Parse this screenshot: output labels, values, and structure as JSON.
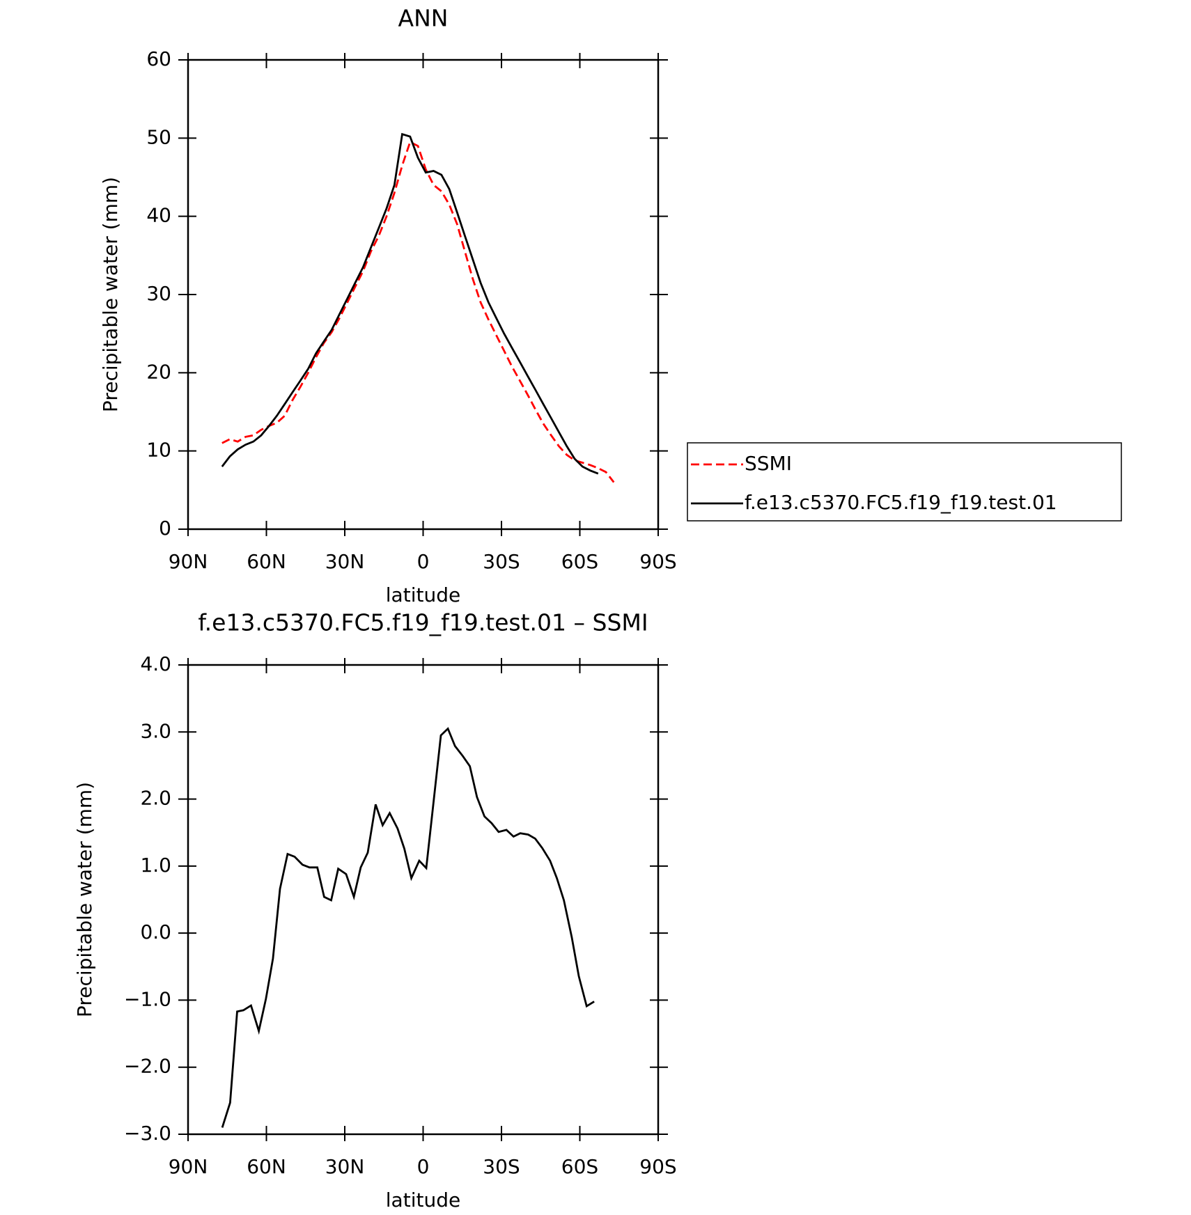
{
  "chart_data": [
    {
      "type": "line",
      "title": "ANN",
      "xlabel": "latitude",
      "ylabel": "Precipitable water (mm)",
      "x": [
        77,
        74,
        71,
        68,
        65,
        62,
        59,
        56,
        53,
        50,
        47,
        44,
        41,
        38,
        35,
        32,
        29,
        26,
        23,
        20,
        17,
        14,
        11,
        8,
        5,
        2,
        -1,
        -4,
        -7,
        -10,
        -13,
        -16,
        -19,
        -22,
        -25,
        -28,
        -31,
        -34,
        -37,
        -40,
        -43,
        -46,
        -49,
        -52,
        -55,
        -58,
        -61,
        -64,
        -67,
        -70,
        -73
      ],
      "series": [
        {
          "name": "SSMI",
          "color": "#ff0000",
          "style": "dashed",
          "values": [
            11.0,
            11.5,
            11.2,
            11.8,
            12.0,
            12.7,
            13.2,
            13.6,
            14.5,
            16.5,
            18.2,
            20.0,
            22.0,
            23.8,
            25.2,
            27.0,
            29.0,
            31.0,
            33.0,
            35.5,
            37.5,
            40.0,
            43.0,
            46.5,
            49.5,
            49.0,
            46.0,
            44.0,
            43.2,
            41.5,
            39.0,
            35.5,
            32.0,
            29.0,
            26.8,
            24.8,
            22.8,
            20.8,
            19.0,
            17.2,
            15.3,
            13.5,
            12.0,
            10.6,
            9.5,
            8.8,
            8.5,
            8.2,
            7.8,
            7.3,
            6.0
          ]
        },
        {
          "name": "f.e13.c5370.FC5.f19_f19.test.01",
          "color": "#000000",
          "style": "solid",
          "values": [
            8.0,
            9.3,
            10.2,
            10.8,
            11.2,
            12.0,
            13.2,
            14.5,
            16.0,
            17.5,
            19.0,
            20.5,
            22.5,
            24.0,
            25.5,
            27.5,
            29.5,
            31.5,
            33.5,
            36.0,
            38.5,
            41.0,
            44.0,
            50.5,
            50.2,
            47.5,
            45.6,
            45.8,
            45.3,
            43.5,
            40.5,
            37.5,
            34.5,
            31.5,
            29.0,
            27.0,
            25.0,
            23.2,
            21.4,
            19.6,
            17.8,
            16.0,
            14.2,
            12.4,
            10.6,
            9.0,
            8.0,
            7.5,
            7.1,
            null,
            null
          ]
        }
      ],
      "xlim": [
        90,
        -90
      ],
      "ylim": [
        0,
        60
      ],
      "xticks": [
        {
          "value": 90,
          "label": "90N"
        },
        {
          "value": 60,
          "label": "60N"
        },
        {
          "value": 30,
          "label": "30N"
        },
        0,
        {
          "value": -30,
          "label": "30S"
        },
        {
          "value": -60,
          "label": "60S"
        },
        {
          "value": -90,
          "label": "90S"
        }
      ],
      "yticks": [
        0,
        10,
        20,
        30,
        40,
        50,
        60
      ],
      "legend": "outside-right"
    },
    {
      "type": "line",
      "title": "f.e13.c5370.FC5.f19_f19.test.01 – SSMI",
      "xlabel": "latitude",
      "ylabel": "Precipitable water (mm)",
      "x": [
        76.9,
        73.9,
        71.2,
        68.8,
        65.9,
        62.9,
        60.2,
        57.5,
        54.8,
        51.9,
        49.2,
        46.2,
        43.5,
        40.5,
        37.9,
        35.2,
        32.5,
        29.5,
        26.5,
        23.9,
        21.2,
        18.2,
        15.5,
        12.8,
        9.8,
        7.2,
        4.5,
        1.5,
        -1.2,
        -3.9,
        -6.8,
        -9.5,
        -12.2,
        -15.2,
        -17.9,
        -20.6,
        -23.5,
        -26.2,
        -28.9,
        -31.9,
        -34.6,
        -37.2,
        -40.2,
        -42.9,
        -45.6,
        -48.6,
        -51.2,
        -53.9,
        -56.9,
        -59.6,
        -62.6,
        -65.5
      ],
      "series": [
        {
          "color": "#000000",
          "style": "solid",
          "values": [
            -2.9,
            -2.53,
            -1.17,
            -1.15,
            -1.08,
            -1.46,
            -0.98,
            -0.38,
            0.66,
            1.18,
            1.14,
            1.02,
            0.98,
            0.98,
            0.54,
            0.49,
            0.96,
            0.88,
            0.54,
            0.98,
            1.2,
            1.92,
            1.61,
            1.79,
            1.56,
            1.26,
            0.82,
            1.08,
            0.97,
            1.92,
            2.95,
            3.05,
            2.79,
            2.64,
            2.49,
            2.03,
            1.74,
            1.64,
            1.51,
            1.54,
            1.44,
            1.49,
            1.47,
            1.41,
            1.27,
            1.08,
            0.82,
            0.49,
            -0.06,
            -0.64,
            -1.09,
            -1.02
          ]
        }
      ],
      "xlim": [
        90,
        -90
      ],
      "ylim": [
        -3,
        4
      ],
      "xticks": [
        {
          "value": 90,
          "label": "90N"
        },
        {
          "value": 60,
          "label": "60N"
        },
        {
          "value": 30,
          "label": "30N"
        },
        0,
        {
          "value": -30,
          "label": "30S"
        },
        {
          "value": -60,
          "label": "60S"
        },
        {
          "value": -90,
          "label": "90S"
        }
      ],
      "yticks": [
        {
          "value": -3,
          "label": "−3.0"
        },
        {
          "value": -2,
          "label": "−2.0"
        },
        {
          "value": -1,
          "label": "−1.0"
        },
        {
          "value": 0,
          "label": "0.0"
        },
        {
          "value": 1,
          "label": "1.0"
        },
        {
          "value": 2,
          "label": "2.0"
        },
        {
          "value": 3,
          "label": "3.0"
        },
        {
          "value": 4,
          "label": "4.0"
        }
      ]
    }
  ]
}
